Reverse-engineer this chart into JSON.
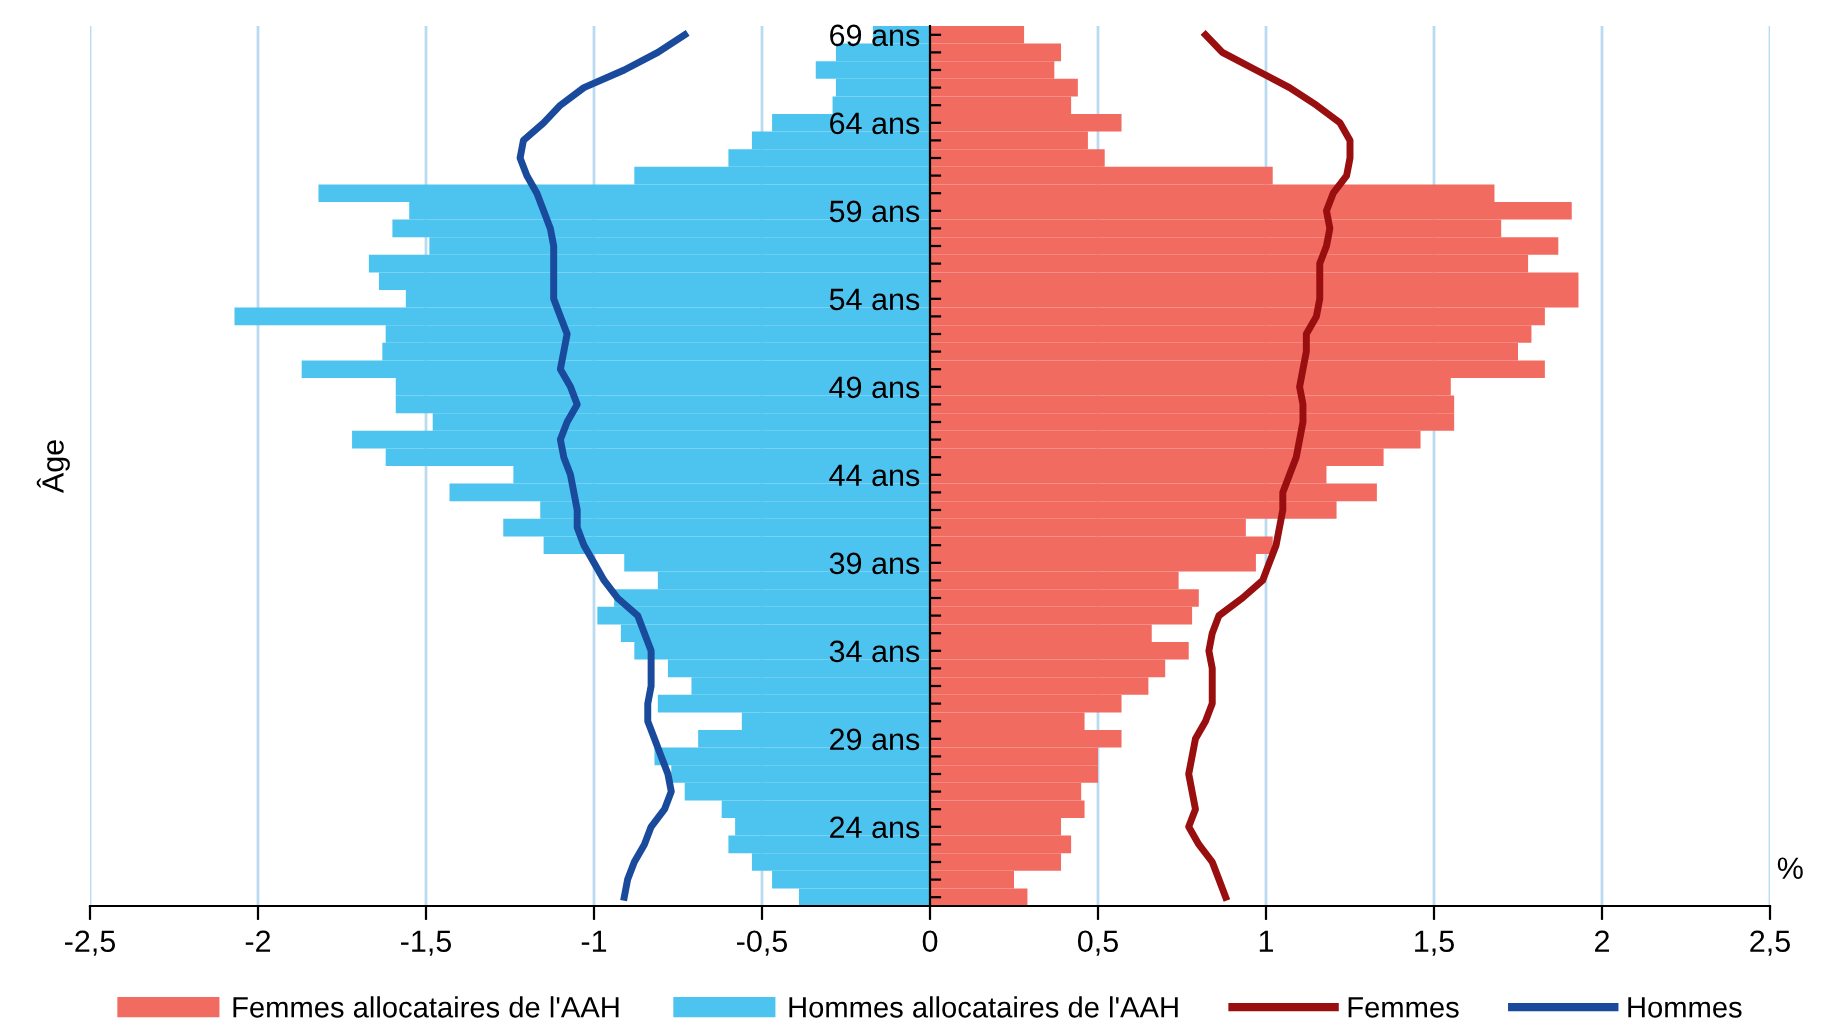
{
  "chart_data": {
    "type": "bar",
    "orientation": "horizontal",
    "ylabel": "Âge",
    "categories": [
      "69 ans",
      null,
      null,
      null,
      null,
      "64 ans",
      null,
      null,
      null,
      null,
      "59 ans",
      null,
      null,
      null,
      null,
      "54 ans",
      null,
      null,
      null,
      null,
      "49 ans",
      null,
      null,
      null,
      null,
      "44 ans",
      null,
      null,
      null,
      null,
      "39 ans",
      null,
      null,
      null,
      null,
      "34 ans",
      null,
      null,
      null,
      null,
      "29 ans",
      null,
      null,
      null,
      null,
      "24 ans",
      null,
      null,
      null,
      null
    ],
    "series": [
      {
        "name": "Femmes allocataires de l'AAH",
        "color": "#f26b61",
        "values": [
          0.28,
          0.39,
          0.37,
          0.44,
          0.42,
          0.57,
          0.47,
          0.52,
          1.02,
          1.68,
          1.91,
          1.7,
          1.87,
          1.78,
          1.93,
          1.93,
          1.83,
          1.79,
          1.75,
          1.83,
          1.55,
          1.56,
          1.56,
          1.46,
          1.35,
          1.18,
          1.33,
          1.21,
          0.94,
          1.02,
          0.97,
          0.74,
          0.8,
          0.78,
          0.66,
          0.77,
          0.7,
          0.65,
          0.57,
          0.46,
          0.57,
          0.5,
          0.5,
          0.45,
          0.46,
          0.39,
          0.42,
          0.39,
          0.25,
          0.29
        ]
      },
      {
        "name": "Hommes allocataires de l'AAH",
        "color": "#4dc3ef",
        "values": [
          -0.17,
          -0.28,
          -0.34,
          -0.28,
          -0.29,
          -0.47,
          -0.53,
          -0.6,
          -0.88,
          -1.82,
          -1.55,
          -1.6,
          -1.49,
          -1.67,
          -1.64,
          -1.56,
          -2.07,
          -1.62,
          -1.63,
          -1.87,
          -1.59,
          -1.59,
          -1.48,
          -1.72,
          -1.62,
          -1.24,
          -1.43,
          -1.16,
          -1.27,
          -1.15,
          -0.91,
          -0.81,
          -0.94,
          -0.99,
          -0.92,
          -0.88,
          -0.78,
          -0.71,
          -0.81,
          -0.56,
          -0.69,
          -0.82,
          -0.77,
          -0.73,
          -0.62,
          -0.58,
          -0.6,
          -0.53,
          -0.47,
          -0.39
        ]
      },
      {
        "name": "Femmes",
        "type": "line",
        "color": "#990f0f",
        "values": [
          0.82,
          0.87,
          0.97,
          1.07,
          1.15,
          1.22,
          1.25,
          1.25,
          1.24,
          1.2,
          1.18,
          1.19,
          1.18,
          1.16,
          1.16,
          1.16,
          1.15,
          1.12,
          1.12,
          1.11,
          1.1,
          1.11,
          1.11,
          1.1,
          1.09,
          1.07,
          1.05,
          1.05,
          1.04,
          1.03,
          1.01,
          0.99,
          0.93,
          0.86,
          0.84,
          0.83,
          0.84,
          0.84,
          0.84,
          0.82,
          0.79,
          0.78,
          0.77,
          0.78,
          0.79,
          0.77,
          0.8,
          0.84,
          0.86,
          0.88
        ]
      },
      {
        "name": "Hommes",
        "type": "line",
        "color": "#1a4a9c",
        "values": [
          -0.73,
          -0.81,
          -0.91,
          -1.03,
          -1.1,
          -1.15,
          -1.21,
          -1.22,
          -1.2,
          -1.17,
          -1.15,
          -1.13,
          -1.12,
          -1.12,
          -1.12,
          -1.12,
          -1.1,
          -1.08,
          -1.09,
          -1.1,
          -1.07,
          -1.05,
          -1.08,
          -1.1,
          -1.09,
          -1.07,
          -1.06,
          -1.05,
          -1.05,
          -1.03,
          -1.0,
          -0.97,
          -0.93,
          -0.87,
          -0.85,
          -0.83,
          -0.83,
          -0.83,
          -0.84,
          -0.84,
          -0.82,
          -0.8,
          -0.78,
          -0.77,
          -0.79,
          -0.83,
          -0.85,
          -0.88,
          -0.9,
          -0.91
        ]
      }
    ],
    "xlim": [
      -2.5,
      2.5
    ],
    "xticks": [
      {
        "value": -2.5,
        "label": "-2,5"
      },
      -2,
      {
        "value": -1.5,
        "label": "-1,5"
      },
      -1,
      {
        "value": -0.5,
        "label": "-0,5"
      },
      0,
      {
        "value": 0.5,
        "label": "0,5"
      },
      1,
      {
        "value": 1.5,
        "label": "1,5"
      },
      2,
      {
        "value": 2.5,
        "label": "2,5"
      }
    ],
    "annotations": [
      "%"
    ],
    "grid": "x",
    "legend": "bottom",
    "stacked": true,
    "marker": "none",
    "line_style": "solid"
  }
}
